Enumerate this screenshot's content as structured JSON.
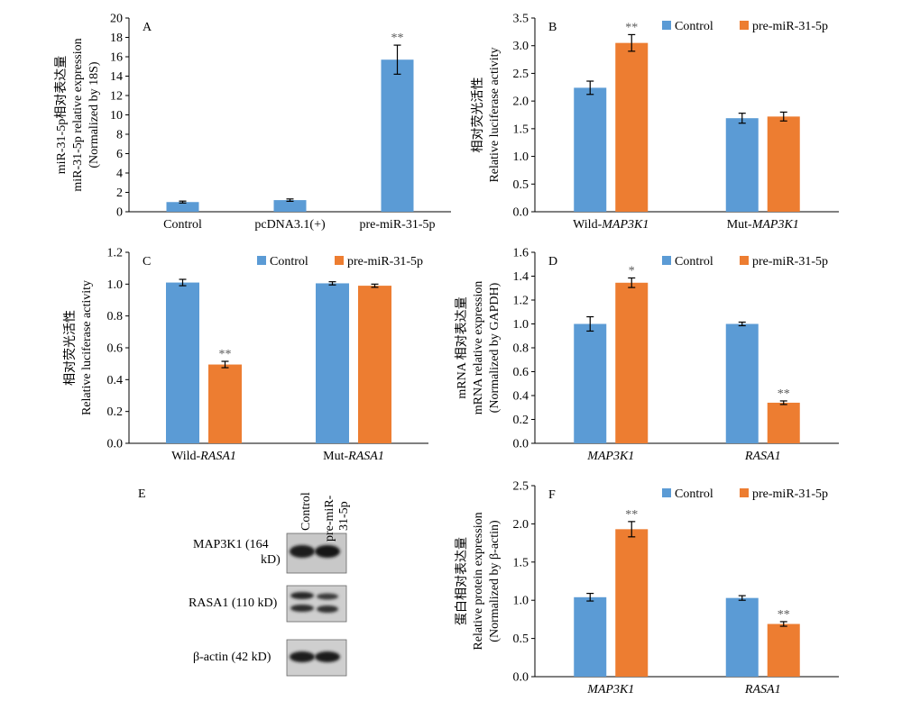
{
  "colors": {
    "control": "#5b9bd5",
    "treat": "#ed7d31",
    "axis": "#000000",
    "sig": "#595959"
  },
  "chart_data": [
    {
      "id": "A",
      "type": "bar",
      "panel_label": "A",
      "categories": [
        "Control",
        "pcDNA3.1(+)",
        "pre-miR-31-5p"
      ],
      "ylim": [
        0,
        20
      ],
      "yticks": [
        0,
        2,
        4,
        6,
        8,
        10,
        12,
        14,
        16,
        18,
        20
      ],
      "tick_decimals": 0,
      "ylabel_lines": [
        "miR-31-5p相对表达量",
        "miR-31-5p relative expression",
        "(Normalized by 18S)"
      ],
      "series": [
        {
          "values": [
            1.0,
            1.2,
            15.7
          ],
          "errors": [
            0.1,
            0.12,
            1.5
          ],
          "sig": [
            "",
            "",
            "**"
          ],
          "color_key": "control"
        }
      ]
    },
    {
      "id": "B",
      "type": "bar",
      "panel_label": "B",
      "categories": [
        [
          "Wild-",
          "MAP3K1"
        ],
        [
          "Mut-",
          "MAP3K1"
        ]
      ],
      "ylim": [
        0,
        3.5
      ],
      "yticks": [
        0,
        0.5,
        1.0,
        1.5,
        2.0,
        2.5,
        3.0,
        3.5
      ],
      "tick_decimals": 1,
      "ylabel_lines": [
        "相对荧光活性",
        "Relative luciferase activity"
      ],
      "series": [
        {
          "name": "Control",
          "values": [
            2.24,
            1.69
          ],
          "errors": [
            0.12,
            0.09
          ],
          "sig": [
            "",
            ""
          ],
          "color_key": "control"
        },
        {
          "name": "pre-miR-31-5p",
          "values": [
            3.05,
            1.72
          ],
          "errors": [
            0.15,
            0.08
          ],
          "sig": [
            "**",
            ""
          ],
          "color_key": "treat"
        }
      ]
    },
    {
      "id": "C",
      "type": "bar",
      "panel_label": "C",
      "categories": [
        [
          "Wild-",
          "RASA1"
        ],
        [
          "Mut-",
          "RASA1"
        ]
      ],
      "ylim": [
        0,
        1.2
      ],
      "yticks": [
        0,
        0.2,
        0.4,
        0.6,
        0.8,
        1.0,
        1.2
      ],
      "tick_decimals": 1,
      "ylabel_lines": [
        "相对荧光活性",
        "Relative luciferase activity"
      ],
      "series": [
        {
          "name": "Control",
          "values": [
            1.01,
            1.005
          ],
          "errors": [
            0.02,
            0.01
          ],
          "sig": [
            "",
            ""
          ],
          "color_key": "control"
        },
        {
          "name": "pre-miR-31-5p",
          "values": [
            0.495,
            0.99
          ],
          "errors": [
            0.02,
            0.01
          ],
          "sig": [
            "**",
            ""
          ],
          "color_key": "treat"
        }
      ]
    },
    {
      "id": "D",
      "type": "bar",
      "panel_label": "D",
      "categories": [
        [
          "",
          "MAP3K1"
        ],
        [
          "",
          "RASA1"
        ]
      ],
      "ylim": [
        0,
        1.6
      ],
      "yticks": [
        0,
        0.2,
        0.4,
        0.6,
        0.8,
        1.0,
        1.2,
        1.4,
        1.6
      ],
      "tick_decimals": 1,
      "ylabel_lines": [
        "mRNA 相对表达量",
        "mRNA relative expression",
        "(Normalized by GAPDH)"
      ],
      "series": [
        {
          "name": "Control",
          "values": [
            1.0,
            1.0
          ],
          "errors": [
            0.06,
            0.015
          ],
          "sig": [
            "",
            ""
          ],
          "color_key": "control"
        },
        {
          "name": "pre-miR-31-5p",
          "values": [
            1.345,
            0.34
          ],
          "errors": [
            0.04,
            0.015
          ],
          "sig": [
            "*",
            "**"
          ],
          "color_key": "treat"
        }
      ]
    },
    {
      "id": "F",
      "type": "bar",
      "panel_label": "F",
      "categories": [
        [
          "",
          "MAP3K1"
        ],
        [
          "",
          "RASA1"
        ]
      ],
      "ylim": [
        0,
        2.5
      ],
      "yticks": [
        0,
        0.5,
        1.0,
        1.5,
        2.0,
        2.5
      ],
      "tick_decimals": 1,
      "ylabel_lines": [
        "蛋白相对表达量",
        "Relative protein expression",
        "(Normalized by β-actin)"
      ],
      "series": [
        {
          "name": "Control",
          "values": [
            1.04,
            1.03
          ],
          "errors": [
            0.05,
            0.03
          ],
          "sig": [
            "",
            ""
          ],
          "color_key": "control"
        },
        {
          "name": "pre-miR-31-5p",
          "values": [
            1.93,
            0.69
          ],
          "errors": [
            0.1,
            0.03
          ],
          "sig": [
            "**",
            "**"
          ],
          "color_key": "treat"
        }
      ]
    }
  ],
  "blot": {
    "panel_label": "E",
    "column_headers": [
      "Control",
      "pre-miR-",
      "31-5p"
    ],
    "rows": [
      {
        "label_lines": [
          "MAP3K1 (164",
          "kD)"
        ]
      },
      {
        "label_lines": [
          "RASA1 (110 kD)"
        ]
      },
      {
        "label_lines": [
          "β-actin (42 kD)"
        ]
      }
    ]
  }
}
